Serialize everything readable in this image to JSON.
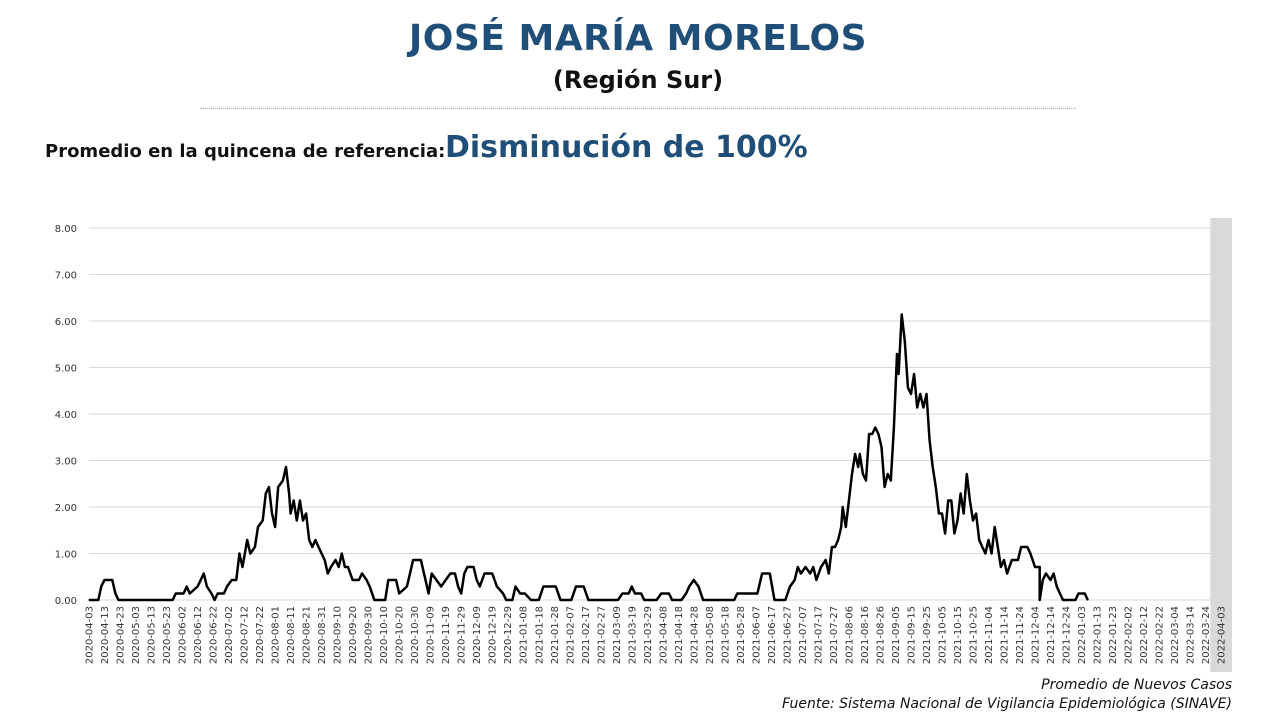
{
  "header": {
    "title": "JOSÉ MARÍA MORELOS",
    "subtitle": "(Región Sur)",
    "reference_label": "Promedio en la quincena de referencia:",
    "reference_value": "Disminución de 100%"
  },
  "footer": {
    "series_note": "Promedio de Nuevos Casos",
    "source": "Fuente: Sistema Nacional de Vigilancia Epidemiológica (SINAVE)"
  },
  "colors": {
    "title": "#1f4e79",
    "line": "#000000",
    "grid": "#d9d9d9",
    "shaded_band": "#d9d9d9"
  },
  "chart_data": {
    "type": "line",
    "start_date": "2020-04-03",
    "end_date": "2022-04-10",
    "shaded_from": "2022-03-27",
    "ylim": [
      0,
      8
    ],
    "yticks": [
      "0.00",
      "1.00",
      "2.00",
      "3.00",
      "4.00",
      "5.00",
      "6.00",
      "7.00",
      "8.00"
    ],
    "xticks": [
      "2020-04-03",
      "2020-04-13",
      "2020-04-23",
      "2020-05-03",
      "2020-05-13",
      "2020-05-23",
      "2020-06-02",
      "2020-06-12",
      "2020-06-22",
      "2020-07-02",
      "2020-07-12",
      "2020-07-22",
      "2020-08-01",
      "2020-08-11",
      "2020-08-21",
      "2020-08-31",
      "2020-09-10",
      "2020-09-20",
      "2020-09-30",
      "2020-10-10",
      "2020-10-20",
      "2020-10-30",
      "2020-11-09",
      "2020-11-19",
      "2020-11-29",
      "2020-12-09",
      "2020-12-19",
      "2020-12-29",
      "2021-01-08",
      "2021-01-18",
      "2021-01-28",
      "2021-02-07",
      "2021-02-17",
      "2021-02-27",
      "2021-03-09",
      "2021-03-19",
      "2021-03-29",
      "2021-04-08",
      "2021-04-18",
      "2021-04-28",
      "2021-05-08",
      "2021-05-18",
      "2021-05-28",
      "2021-06-07",
      "2021-06-17",
      "2021-06-27",
      "2021-07-07",
      "2021-07-17",
      "2021-07-27",
      "2021-08-06",
      "2021-08-16",
      "2021-08-26",
      "2021-09-05",
      "2021-09-15",
      "2021-09-25",
      "2021-10-05",
      "2021-10-15",
      "2021-10-25",
      "2021-11-04",
      "2021-11-14",
      "2021-11-24",
      "2021-12-04",
      "2021-12-14",
      "2021-12-24",
      "2022-01-03",
      "2022-01-13",
      "2022-01-23",
      "2022-02-02",
      "2022-02-12",
      "2022-02-22",
      "2022-03-04",
      "2022-03-14",
      "2022-03-24",
      "2022-04-03"
    ],
    "series": [
      {
        "name": "",
        "points": [
          [
            "2020-04-03",
            0
          ],
          [
            "2020-04-09",
            0
          ],
          [
            "2020-04-11",
            0.3
          ],
          [
            "2020-04-13",
            0.43
          ],
          [
            "2020-04-18",
            0.43
          ],
          [
            "2020-04-20",
            0.14
          ],
          [
            "2020-04-22",
            0
          ],
          [
            "2020-05-27",
            0
          ],
          [
            "2020-05-29",
            0.14
          ],
          [
            "2020-06-03",
            0.14
          ],
          [
            "2020-06-05",
            0.29
          ],
          [
            "2020-06-07",
            0.14
          ],
          [
            "2020-06-12",
            0.29
          ],
          [
            "2020-06-14",
            0.43
          ],
          [
            "2020-06-16",
            0.57
          ],
          [
            "2020-06-18",
            0.29
          ],
          [
            "2020-06-21",
            0.14
          ],
          [
            "2020-06-23",
            0
          ],
          [
            "2020-06-25",
            0.14
          ],
          [
            "2020-06-29",
            0.14
          ],
          [
            "2020-07-01",
            0.29
          ],
          [
            "2020-07-04",
            0.43
          ],
          [
            "2020-07-07",
            0.43
          ],
          [
            "2020-07-09",
            1.0
          ],
          [
            "2020-07-11",
            0.71
          ],
          [
            "2020-07-14",
            1.29
          ],
          [
            "2020-07-16",
            1.0
          ],
          [
            "2020-07-19",
            1.14
          ],
          [
            "2020-07-21",
            1.57
          ],
          [
            "2020-07-24",
            1.71
          ],
          [
            "2020-07-26",
            2.29
          ],
          [
            "2020-07-28",
            2.43
          ],
          [
            "2020-07-30",
            1.86
          ],
          [
            "2020-08-01",
            1.57
          ],
          [
            "2020-08-03",
            2.43
          ],
          [
            "2020-08-06",
            2.57
          ],
          [
            "2020-08-08",
            2.86
          ],
          [
            "2020-08-10",
            2.29
          ],
          [
            "2020-08-11",
            1.86
          ],
          [
            "2020-08-13",
            2.14
          ],
          [
            "2020-08-15",
            1.71
          ],
          [
            "2020-08-17",
            2.14
          ],
          [
            "2020-08-19",
            1.71
          ],
          [
            "2020-08-21",
            1.86
          ],
          [
            "2020-08-23",
            1.29
          ],
          [
            "2020-08-25",
            1.14
          ],
          [
            "2020-08-27",
            1.29
          ],
          [
            "2020-08-29",
            1.14
          ],
          [
            "2020-08-31",
            1.0
          ],
          [
            "2020-09-02",
            0.86
          ],
          [
            "2020-09-04",
            0.57
          ],
          [
            "2020-09-06",
            0.71
          ],
          [
            "2020-09-09",
            0.86
          ],
          [
            "2020-09-11",
            0.71
          ],
          [
            "2020-09-13",
            1.0
          ],
          [
            "2020-09-15",
            0.71
          ],
          [
            "2020-09-17",
            0.71
          ],
          [
            "2020-09-20",
            0.43
          ],
          [
            "2020-09-24",
            0.43
          ],
          [
            "2020-09-26",
            0.57
          ],
          [
            "2020-09-29",
            0.43
          ],
          [
            "2020-10-01",
            0.29
          ],
          [
            "2020-10-04",
            0
          ],
          [
            "2020-10-11",
            0
          ],
          [
            "2020-10-13",
            0.43
          ],
          [
            "2020-10-18",
            0.43
          ],
          [
            "2020-10-20",
            0.14
          ],
          [
            "2020-10-25",
            0.29
          ],
          [
            "2020-10-27",
            0.57
          ],
          [
            "2020-10-29",
            0.86
          ],
          [
            "2020-11-03",
            0.86
          ],
          [
            "2020-11-06",
            0.43
          ],
          [
            "2020-11-08",
            0.14
          ],
          [
            "2020-11-10",
            0.57
          ],
          [
            "2020-11-13",
            0.43
          ],
          [
            "2020-11-16",
            0.29
          ],
          [
            "2020-11-19",
            0.43
          ],
          [
            "2020-11-22",
            0.57
          ],
          [
            "2020-11-25",
            0.57
          ],
          [
            "2020-11-27",
            0.29
          ],
          [
            "2020-11-29",
            0.14
          ],
          [
            "2020-12-01",
            0.57
          ],
          [
            "2020-12-03",
            0.71
          ],
          [
            "2020-12-07",
            0.71
          ],
          [
            "2020-12-09",
            0.43
          ],
          [
            "2020-12-11",
            0.29
          ],
          [
            "2020-12-14",
            0.57
          ],
          [
            "2020-12-19",
            0.57
          ],
          [
            "2020-12-22",
            0.29
          ],
          [
            "2020-12-26",
            0.14
          ],
          [
            "2020-12-28",
            0
          ],
          [
            "2021-01-01",
            0
          ],
          [
            "2021-01-03",
            0.29
          ],
          [
            "2021-01-06",
            0.14
          ],
          [
            "2021-01-09",
            0.14
          ],
          [
            "2021-01-13",
            0
          ],
          [
            "2021-01-18",
            0
          ],
          [
            "2021-01-21",
            0.29
          ],
          [
            "2021-01-29",
            0.29
          ],
          [
            "2021-02-01",
            0
          ],
          [
            "2021-02-08",
            0
          ],
          [
            "2021-02-11",
            0.29
          ],
          [
            "2021-02-16",
            0.29
          ],
          [
            "2021-02-19",
            0
          ],
          [
            "2021-03-10",
            0
          ],
          [
            "2021-03-13",
            0.14
          ],
          [
            "2021-03-17",
            0.14
          ],
          [
            "2021-03-19",
            0.29
          ],
          [
            "2021-03-21",
            0.14
          ],
          [
            "2021-03-25",
            0.14
          ],
          [
            "2021-03-27",
            0
          ],
          [
            "2021-04-04",
            0
          ],
          [
            "2021-04-07",
            0.14
          ],
          [
            "2021-04-12",
            0.14
          ],
          [
            "2021-04-14",
            0
          ],
          [
            "2021-04-20",
            0
          ],
          [
            "2021-04-23",
            0.14
          ],
          [
            "2021-04-25",
            0.29
          ],
          [
            "2021-04-28",
            0.43
          ],
          [
            "2021-05-01",
            0.29
          ],
          [
            "2021-05-04",
            0
          ],
          [
            "2021-05-24",
            0
          ],
          [
            "2021-05-26",
            0.14
          ],
          [
            "2021-06-08",
            0.14
          ],
          [
            "2021-06-11",
            0.57
          ],
          [
            "2021-06-16",
            0.57
          ],
          [
            "2021-06-19",
            0
          ],
          [
            "2021-06-26",
            0
          ],
          [
            "2021-06-29",
            0.29
          ],
          [
            "2021-07-02",
            0.43
          ],
          [
            "2021-07-04",
            0.71
          ],
          [
            "2021-07-06",
            0.57
          ],
          [
            "2021-07-09",
            0.71
          ],
          [
            "2021-07-12",
            0.57
          ],
          [
            "2021-07-14",
            0.71
          ],
          [
            "2021-07-16",
            0.43
          ],
          [
            "2021-07-19",
            0.71
          ],
          [
            "2021-07-22",
            0.86
          ],
          [
            "2021-07-24",
            0.57
          ],
          [
            "2021-07-26",
            1.14
          ],
          [
            "2021-07-28",
            1.14
          ],
          [
            "2021-07-30",
            1.29
          ],
          [
            "2021-08-01",
            1.57
          ],
          [
            "2021-08-02",
            2.0
          ],
          [
            "2021-08-04",
            1.57
          ],
          [
            "2021-08-06",
            2.14
          ],
          [
            "2021-08-08",
            2.71
          ],
          [
            "2021-08-10",
            3.14
          ],
          [
            "2021-08-12",
            2.86
          ],
          [
            "2021-08-13",
            3.14
          ],
          [
            "2021-08-15",
            2.71
          ],
          [
            "2021-08-17",
            2.57
          ],
          [
            "2021-08-19",
            3.57
          ],
          [
            "2021-08-21",
            3.57
          ],
          [
            "2021-08-23",
            3.71
          ],
          [
            "2021-08-25",
            3.57
          ],
          [
            "2021-08-27",
            3.29
          ],
          [
            "2021-08-29",
            2.43
          ],
          [
            "2021-08-31",
            2.71
          ],
          [
            "2021-09-02",
            2.57
          ],
          [
            "2021-09-04",
            3.71
          ],
          [
            "2021-09-06",
            5.29
          ],
          [
            "2021-09-07",
            4.86
          ],
          [
            "2021-09-09",
            6.14
          ],
          [
            "2021-09-11",
            5.57
          ],
          [
            "2021-09-13",
            4.57
          ],
          [
            "2021-09-15",
            4.43
          ],
          [
            "2021-09-17",
            4.86
          ],
          [
            "2021-09-19",
            4.14
          ],
          [
            "2021-09-21",
            4.43
          ],
          [
            "2021-09-23",
            4.14
          ],
          [
            "2021-09-25",
            4.43
          ],
          [
            "2021-09-27",
            3.43
          ],
          [
            "2021-09-29",
            2.86
          ],
          [
            "2021-10-01",
            2.43
          ],
          [
            "2021-10-03",
            1.86
          ],
          [
            "2021-10-05",
            1.86
          ],
          [
            "2021-10-07",
            1.43
          ],
          [
            "2021-10-09",
            2.14
          ],
          [
            "2021-10-11",
            2.14
          ],
          [
            "2021-10-13",
            1.43
          ],
          [
            "2021-10-15",
            1.71
          ],
          [
            "2021-10-17",
            2.29
          ],
          [
            "2021-10-19",
            1.86
          ],
          [
            "2021-10-21",
            2.71
          ],
          [
            "2021-10-23",
            2.14
          ],
          [
            "2021-10-25",
            1.71
          ],
          [
            "2021-10-27",
            1.86
          ],
          [
            "2021-10-29",
            1.29
          ],
          [
            "2021-10-31",
            1.14
          ],
          [
            "2021-11-02",
            1.0
          ],
          [
            "2021-11-04",
            1.29
          ],
          [
            "2021-11-06",
            1.0
          ],
          [
            "2021-11-08",
            1.57
          ],
          [
            "2021-11-10",
            1.14
          ],
          [
            "2021-11-12",
            0.71
          ],
          [
            "2021-11-14",
            0.86
          ],
          [
            "2021-11-16",
            0.57
          ],
          [
            "2021-11-19",
            0.86
          ],
          [
            "2021-11-23",
            0.86
          ],
          [
            "2021-11-25",
            1.14
          ],
          [
            "2021-11-29",
            1.14
          ],
          [
            "2021-12-01",
            1.0
          ],
          [
            "2021-12-04",
            0.71
          ],
          [
            "2021-12-07",
            0.71
          ],
          [
            "2021-12-09",
            0.43
          ],
          [
            "2021-12-11",
            0.57
          ],
          [
            "2021-12-14",
            0.43
          ],
          [
            "2021-12-16",
            0.57
          ],
          [
            "2021-12-18",
            0.29
          ],
          [
            "2021-12-20",
            0.14
          ],
          [
            "2021-12-22",
            0
          ],
          [
            "2021-12-30",
            0
          ],
          [
            "2022-01-01",
            0.14
          ],
          [
            "2022-01-05",
            0.14
          ],
          [
            "2022-01-07",
            0
          ],
          [
            "2021-12-07",
            0
          ]
        ]
      }
    ]
  }
}
